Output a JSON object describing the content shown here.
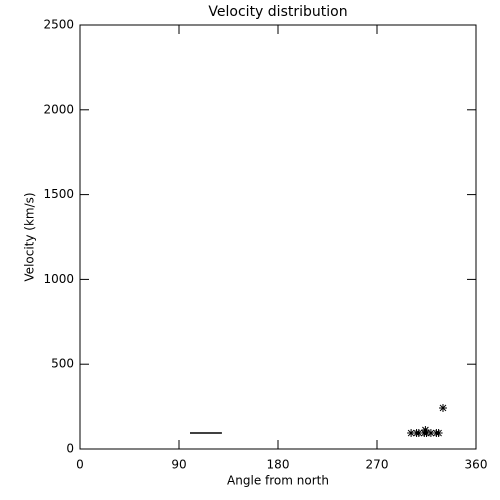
{
  "chart_data": {
    "type": "scatter",
    "title": "Velocity distribution",
    "x_label": "Angle from north",
    "y_label": "Velocity (km/s)",
    "xlim": [
      0,
      360
    ],
    "xticks": [
      0,
      90,
      180,
      270,
      360
    ],
    "ylim": [
      0,
      2500
    ],
    "yticks": [
      0,
      500,
      1000,
      1500,
      2000,
      2500
    ],
    "color": "#000000",
    "series": [
      {
        "style": "line",
        "x": [
          100,
          129
        ],
        "values": [
          94,
          94
        ]
      },
      {
        "style": "asterisk",
        "x": [
          301,
          306,
          308,
          313,
          314,
          315,
          319,
          324,
          326,
          330
        ],
        "values": [
          94,
          94,
          94,
          94,
          112,
          94,
          94,
          94,
          94,
          242
        ]
      }
    ]
  }
}
